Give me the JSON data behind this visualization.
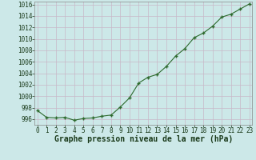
{
  "x": [
    0,
    1,
    2,
    3,
    4,
    5,
    6,
    7,
    8,
    9,
    10,
    11,
    12,
    13,
    14,
    15,
    16,
    17,
    18,
    19,
    20,
    21,
    22,
    23
  ],
  "y": [
    997.5,
    996.3,
    996.2,
    996.3,
    995.8,
    996.1,
    996.2,
    996.5,
    996.7,
    998.1,
    999.7,
    1002.3,
    1003.3,
    1003.8,
    1005.2,
    1007.0,
    1008.3,
    1010.2,
    1011.0,
    1012.2,
    1013.8,
    1014.3,
    1015.2,
    1016.1
  ],
  "line_color": "#2d6a2d",
  "marker_color": "#2d6a2d",
  "bg_color": "#cce8e8",
  "grid_color_v": "#c8b8c8",
  "grid_color_h": "#c8b8c8",
  "xlabel": "Graphe pression niveau de la mer (hPa)",
  "xlabel_color": "#1a3a1a",
  "ylim": [
    995.0,
    1016.5
  ],
  "xlim": [
    -0.3,
    23.3
  ],
  "yticks": [
    996,
    998,
    1000,
    1002,
    1004,
    1006,
    1008,
    1010,
    1012,
    1014,
    1016
  ],
  "xticks": [
    0,
    1,
    2,
    3,
    4,
    5,
    6,
    7,
    8,
    9,
    10,
    11,
    12,
    13,
    14,
    15,
    16,
    17,
    18,
    19,
    20,
    21,
    22,
    23
  ],
  "tick_fontsize": 5.5,
  "xlabel_fontsize": 7.0
}
